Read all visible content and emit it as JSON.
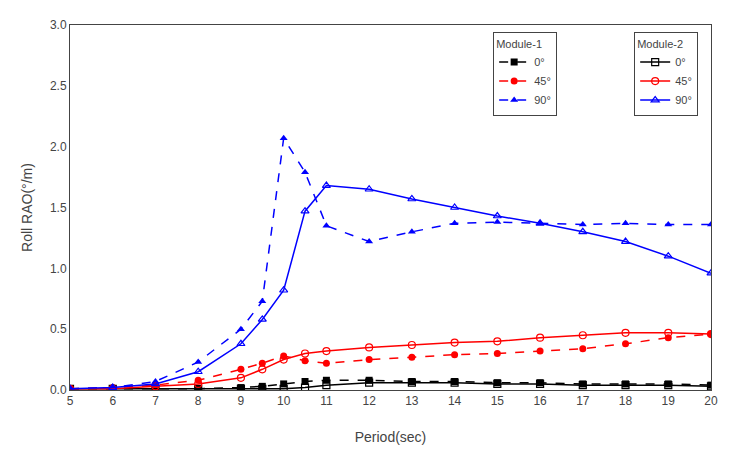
{
  "chart_data": {
    "type": "line",
    "xlabel": "Period(sec)",
    "ylabel": "Roll RAO(°/m)",
    "x": [
      5,
      6,
      7,
      8,
      9,
      9.5,
      10,
      10.5,
      11,
      12,
      13,
      14,
      15,
      16,
      17,
      18,
      19,
      20
    ],
    "xlim": [
      5,
      20
    ],
    "ylim": [
      0,
      3.0
    ],
    "xticks": [
      5,
      6,
      7,
      8,
      9,
      10,
      11,
      12,
      13,
      14,
      15,
      16,
      17,
      18,
      19,
      20
    ],
    "yticks": [
      {
        "value": 0.0,
        "label": "0.0"
      },
      0.5,
      {
        "value": 1.0,
        "label": "1.0"
      },
      1.5,
      {
        "value": 2.0,
        "label": "2.0"
      },
      2.5,
      {
        "value": 3.0,
        "label": "3.0"
      }
    ],
    "grid": false,
    "legend": "upper right",
    "series": [
      {
        "name": "0°",
        "group": "Module-1",
        "color": "#000000",
        "marker": "square",
        "line_style": "dash",
        "values": [
          0.01,
          0.01,
          0.01,
          0.01,
          0.02,
          0.03,
          0.05,
          0.07,
          0.08,
          0.08,
          0.07,
          0.07,
          0.06,
          0.06,
          0.05,
          0.05,
          0.05,
          0.04
        ]
      },
      {
        "name": "45°",
        "group": "Module-1",
        "color": "#ff0000",
        "marker": "circle",
        "line_style": "dash",
        "values": [
          0.01,
          0.02,
          0.04,
          0.08,
          0.17,
          0.22,
          0.28,
          0.24,
          0.22,
          0.25,
          0.27,
          0.29,
          0.3,
          0.32,
          0.34,
          0.38,
          0.43,
          0.46
        ]
      },
      {
        "name": "90°",
        "group": "Module-1",
        "color": "#0000ff",
        "marker": "triangle-up",
        "line_style": "dash",
        "values": [
          0.01,
          0.02,
          0.07,
          0.23,
          0.5,
          0.73,
          2.07,
          1.79,
          1.35,
          1.22,
          1.3,
          1.37,
          1.38,
          1.37,
          1.36,
          1.37,
          1.36,
          1.36
        ]
      },
      {
        "name": "0°",
        "group": "Module-2",
        "color": "#000000",
        "marker": "square-open",
        "line_style": "solid",
        "values": [
          0.01,
          0.01,
          0.01,
          0.01,
          0.01,
          0.01,
          0.01,
          0.02,
          0.04,
          0.06,
          0.06,
          0.06,
          0.05,
          0.05,
          0.04,
          0.04,
          0.04,
          0.03
        ]
      },
      {
        "name": "45°",
        "group": "Module-2",
        "color": "#ff0000",
        "marker": "circle-open",
        "line_style": "solid",
        "values": [
          0.01,
          0.01,
          0.03,
          0.05,
          0.1,
          0.17,
          0.25,
          0.3,
          0.32,
          0.35,
          0.37,
          0.39,
          0.4,
          0.43,
          0.45,
          0.47,
          0.47,
          0.46
        ]
      },
      {
        "name": "90°",
        "group": "Module-2",
        "color": "#0000ff",
        "marker": "triangle-up-open",
        "line_style": "solid",
        "values": [
          0.01,
          0.02,
          0.05,
          0.15,
          0.38,
          0.58,
          0.82,
          1.47,
          1.68,
          1.65,
          1.57,
          1.5,
          1.43,
          1.37,
          1.3,
          1.22,
          1.1,
          0.96
        ]
      }
    ]
  }
}
